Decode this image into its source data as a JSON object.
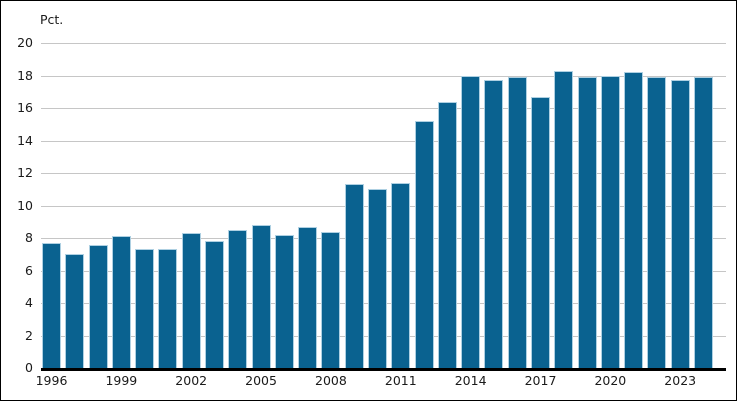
{
  "figure": {
    "background": "#ffffff",
    "frame_color": "#000000",
    "bar_color": "#0a6290",
    "bar_edge_color": "#aed0e2",
    "gridline_color": "#c6c6c6",
    "axis_line_color": "#000000",
    "text_color": "#1a1a1a"
  },
  "chart_data": {
    "type": "bar",
    "title": "",
    "xlabel": "",
    "ylabel": "Pct.",
    "ylim": [
      0,
      20
    ],
    "grid": true,
    "legend": "none",
    "yticks": [
      0,
      2,
      4,
      6,
      8,
      10,
      12,
      14,
      16,
      18,
      20
    ],
    "x": [
      "1996",
      "1997",
      "1998",
      "1999",
      "2000",
      "2001",
      "2002",
      "2003",
      "2004",
      "2005",
      "2006",
      "2007",
      "2008",
      "2009",
      "2010",
      "2011",
      "2012",
      "2013",
      "2014",
      "2015",
      "2016",
      "2017",
      "2018",
      "2019",
      "2020",
      "2021",
      "2022",
      "2023",
      "2024"
    ],
    "values": [
      7.7,
      7.0,
      7.6,
      8.1,
      7.3,
      7.3,
      8.3,
      7.8,
      8.5,
      8.8,
      8.2,
      8.7,
      8.4,
      11.3,
      11.0,
      11.4,
      15.2,
      16.4,
      18.0,
      17.7,
      17.9,
      16.7,
      18.3,
      17.9,
      18.0,
      18.2,
      17.9,
      17.7,
      17.9
    ],
    "xtick_labels": [
      "1996",
      "1999",
      "2002",
      "2005",
      "2008",
      "2011",
      "2014",
      "2017",
      "2020",
      "2023"
    ]
  }
}
